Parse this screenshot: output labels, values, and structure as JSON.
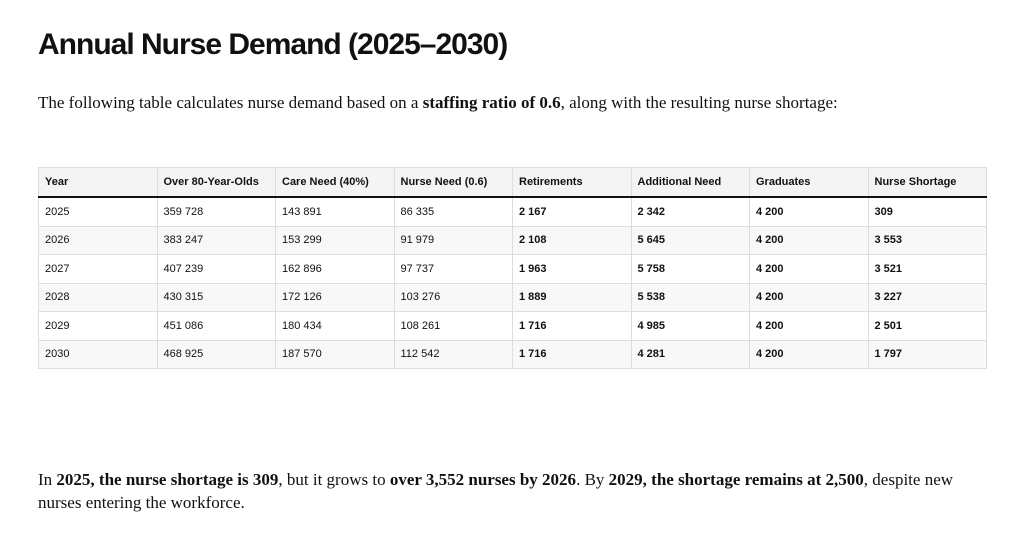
{
  "title": "Annual Nurse Demand (2025–2030)",
  "intro": [
    "The following table calculates nurse demand based on a ",
    "staffing ratio of 0.6",
    ", along with the resulting nurse shortage:"
  ],
  "table": {
    "header": [
      "Year",
      "Over 80-Year-Olds",
      "Care Need (40%)",
      "Nurse Need (0.6)",
      "Retirements",
      "Additional Need",
      "Graduates",
      "Nurse Shortage"
    ],
    "rows": [
      [
        "2025",
        "359 728",
        "143 891",
        "86 335",
        "2 167",
        "2 342",
        "4 200",
        "309"
      ],
      [
        "2026",
        "383 247",
        "153 299",
        "91 979",
        "2 108",
        "5 645",
        "4 200",
        "3 553"
      ],
      [
        "2027",
        "407 239",
        "162 896",
        "97 737",
        "1 963",
        "5 758",
        "4 200",
        "3 521"
      ],
      [
        "2028",
        "430 315",
        "172 126",
        "103 276",
        "1 889",
        "5 538",
        "4 200",
        "3 227"
      ],
      [
        "2029",
        "451 086",
        "180 434",
        "108 261",
        "1 716",
        "4 985",
        "4 200",
        "2 501"
      ],
      [
        "2030",
        "468 925",
        "187 570",
        "112 542",
        "1 716",
        "4 281",
        "4 200",
        "1 797"
      ]
    ]
  },
  "conclusion": [
    "In ",
    "2025, the nurse shortage is 309",
    ", but it grows to ",
    "over 3,552 nurses by 2026",
    ". By ",
    "2029, the shortage remains at 2,500",
    ", despite new nurses entering the workforce."
  ]
}
